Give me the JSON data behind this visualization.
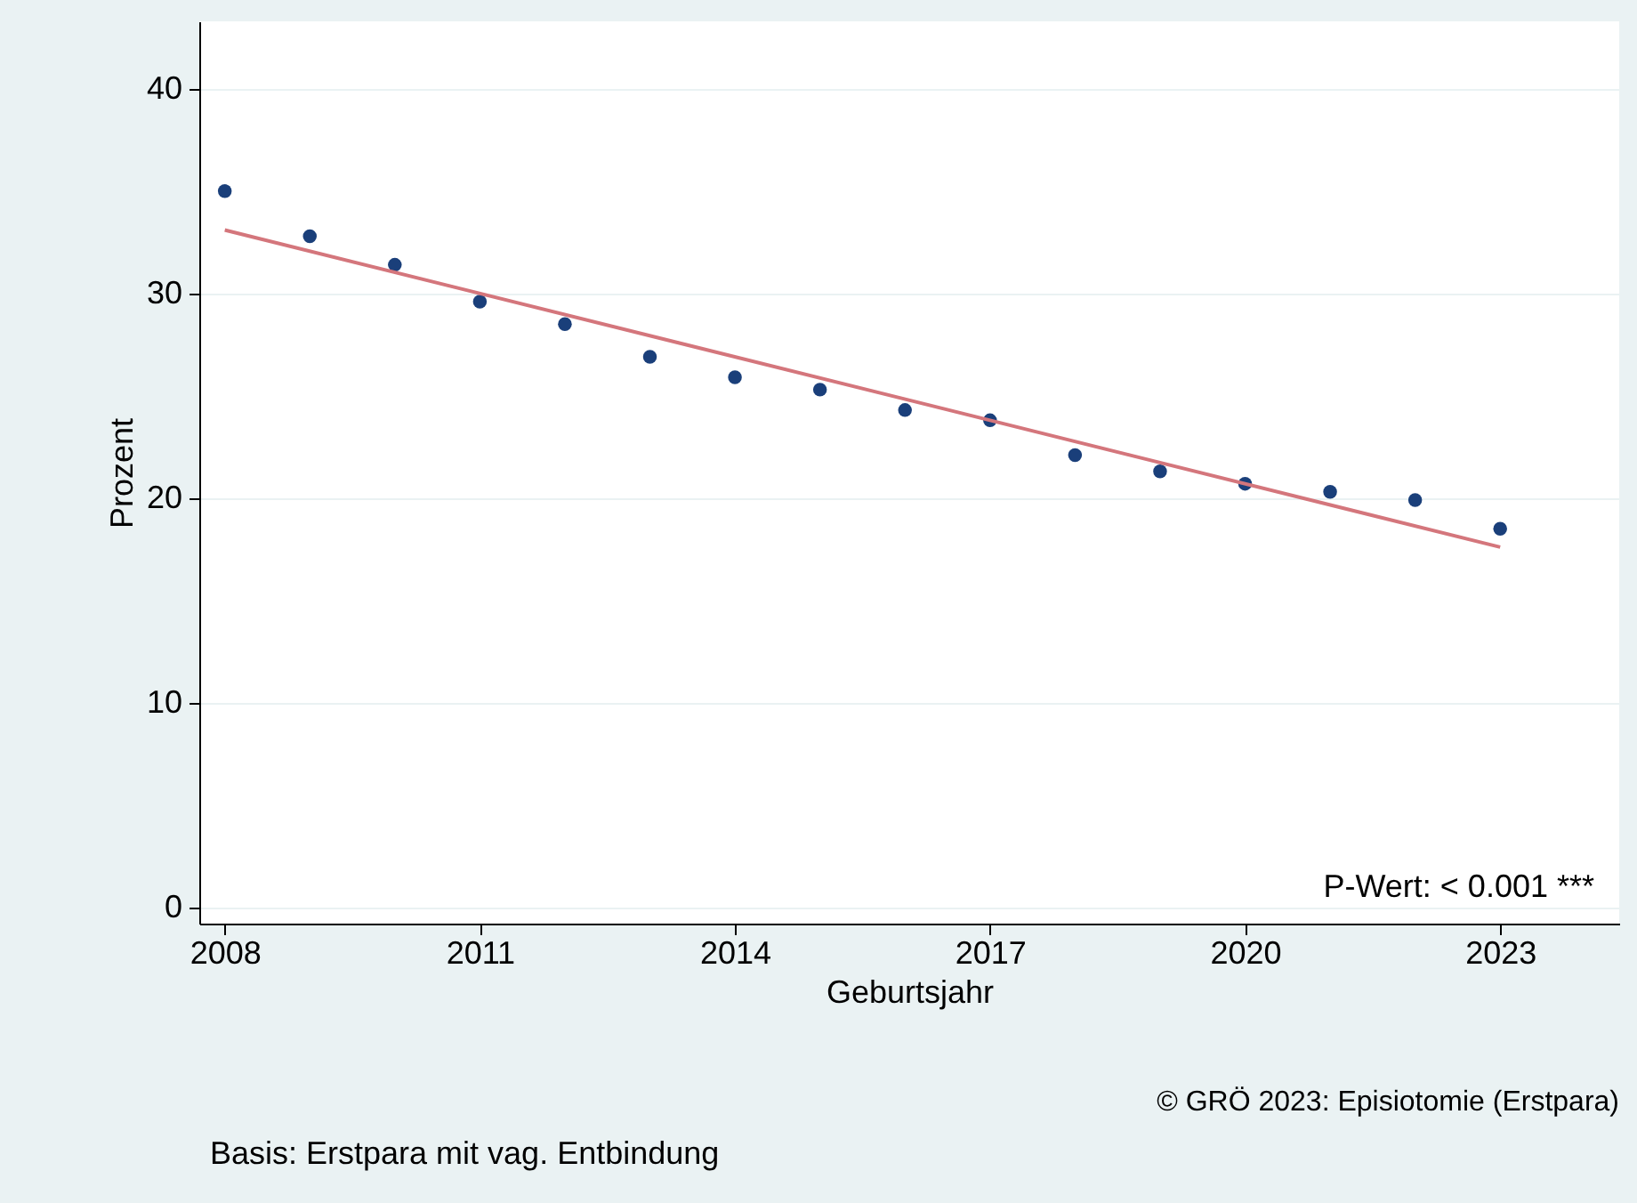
{
  "chart_data": {
    "type": "scatter",
    "xlabel": "Geburtsjahr",
    "ylabel": "Prozent",
    "x": [
      2008,
      2009,
      2010,
      2011,
      2012,
      2013,
      2014,
      2015,
      2016,
      2017,
      2018,
      2019,
      2020,
      2021,
      2022,
      2023
    ],
    "series": [
      {
        "marker": "circle",
        "color": "#1a3f7a",
        "values": [
          35.0,
          32.8,
          31.4,
          29.6,
          28.5,
          26.9,
          25.9,
          25.3,
          24.3,
          23.8,
          22.1,
          21.3,
          20.7,
          20.3,
          19.9,
          18.5
        ]
      },
      {
        "type": "line",
        "marker": "none",
        "color": "#d4767c",
        "x": [
          2008,
          2023
        ],
        "values": [
          33.1,
          17.6
        ]
      }
    ],
    "xlim": [
      2007.7,
      2024.4
    ],
    "xticks": [
      2008,
      2011,
      2014,
      2017,
      2020,
      2023
    ],
    "ylim": [
      -0.8,
      43.3
    ],
    "yticks": [
      0,
      10,
      20,
      30,
      40
    ],
    "grid": "y",
    "line_style": "solid",
    "annotations": [
      "P-Wert: < 0.001 ***",
      "© GRÖ 2023: Episiotomie (Erstpara)",
      "Basis: Erstpara mit vag. Entbindung"
    ]
  }
}
